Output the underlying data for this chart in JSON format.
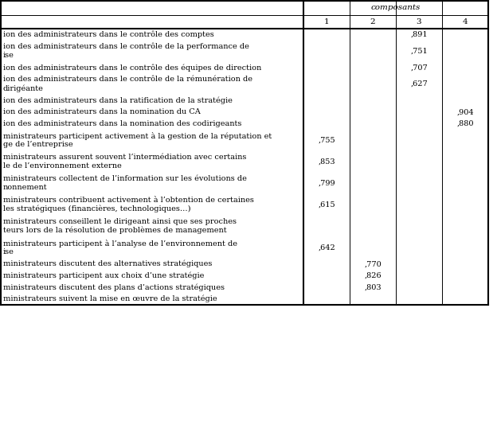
{
  "header_group": "composants",
  "col_headers": [
    "1",
    "2",
    "3",
    "4"
  ],
  "rows": [
    {
      "label": "ion des administrateurs dans le contrôle des comptes",
      "vals": [
        "",
        "",
        ",891",
        ""
      ],
      "nlines": 1
    },
    {
      "label": "ion des administrateurs dans le contrôle de la performance de\nise",
      "vals": [
        "",
        "",
        ",751",
        ""
      ],
      "nlines": 2
    },
    {
      "label": "ion des administrateurs dans le contrôle des équipes de direction",
      "vals": [
        "",
        "",
        ",707",
        ""
      ],
      "nlines": 1
    },
    {
      "label": "ion des administrateurs dans le contrôle de la rémunération de\ndirigéante",
      "vals": [
        "",
        "",
        ",627",
        ""
      ],
      "nlines": 2
    },
    {
      "label": "ion des administrateurs dans la ratification de la stratégie",
      "vals": [
        "",
        "",
        "",
        ""
      ],
      "nlines": 1
    },
    {
      "label": "ion des administrateurs dans la nomination du CA",
      "vals": [
        "",
        "",
        "",
        ",904"
      ],
      "nlines": 1
    },
    {
      "label": "ion des administrateurs dans la nomination des codirigeants",
      "vals": [
        "",
        "",
        "",
        ",880"
      ],
      "nlines": 1
    },
    {
      "label": "ministrateurs participent activement à la gestion de la réputation et\nge de l’entreprise",
      "vals": [
        ",755",
        "",
        "",
        ""
      ],
      "nlines": 2
    },
    {
      "label": "ministrateurs assurent souvent l’intermédiation avec certains\nle de l’environnement externe",
      "vals": [
        ",853",
        "",
        "",
        ""
      ],
      "nlines": 2
    },
    {
      "label": "ministrateurs collectent de l’information sur les évolutions de\nnonnement",
      "vals": [
        ",799",
        "",
        "",
        ""
      ],
      "nlines": 2
    },
    {
      "label": "ministrateurs contribuent activement à l’obtention de certaines\nles stratégiques (financières, technologiques…)",
      "vals": [
        ",615",
        "",
        "",
        ""
      ],
      "nlines": 2
    },
    {
      "label": "ministrateurs conseillent le dirigeant ainsi que ses proches\nteurs lors de la résolution de problèmes de management",
      "vals": [
        "",
        "",
        "",
        ""
      ],
      "nlines": 2
    },
    {
      "label": "ministrateurs participent à l’analyse de l’environnement de\nise",
      "vals": [
        ",642",
        "",
        "",
        ""
      ],
      "nlines": 2
    },
    {
      "label": "ministrateurs discutent des alternatives stratégiques",
      "vals": [
        "",
        ",770",
        "",
        ""
      ],
      "nlines": 1
    },
    {
      "label": "ministrateurs participent aux choix d’une stratégie",
      "vals": [
        "",
        ",826",
        "",
        ""
      ],
      "nlines": 1
    },
    {
      "label": "ministrateurs discutent des plans d’actions stratégiques",
      "vals": [
        "",
        ",803",
        "",
        ""
      ],
      "nlines": 1
    },
    {
      "label": "ministrateurs suivent la mise en œuvre de la stratégie",
      "vals": [
        "",
        "",
        "",
        ""
      ],
      "nlines": 1
    }
  ],
  "bg_color": "#ffffff",
  "text_color": "#000000",
  "line_color": "#000000",
  "font_size": 7.0,
  "header_font_size": 7.5,
  "fig_width": 6.24,
  "fig_height": 5.29,
  "dpi": 100
}
